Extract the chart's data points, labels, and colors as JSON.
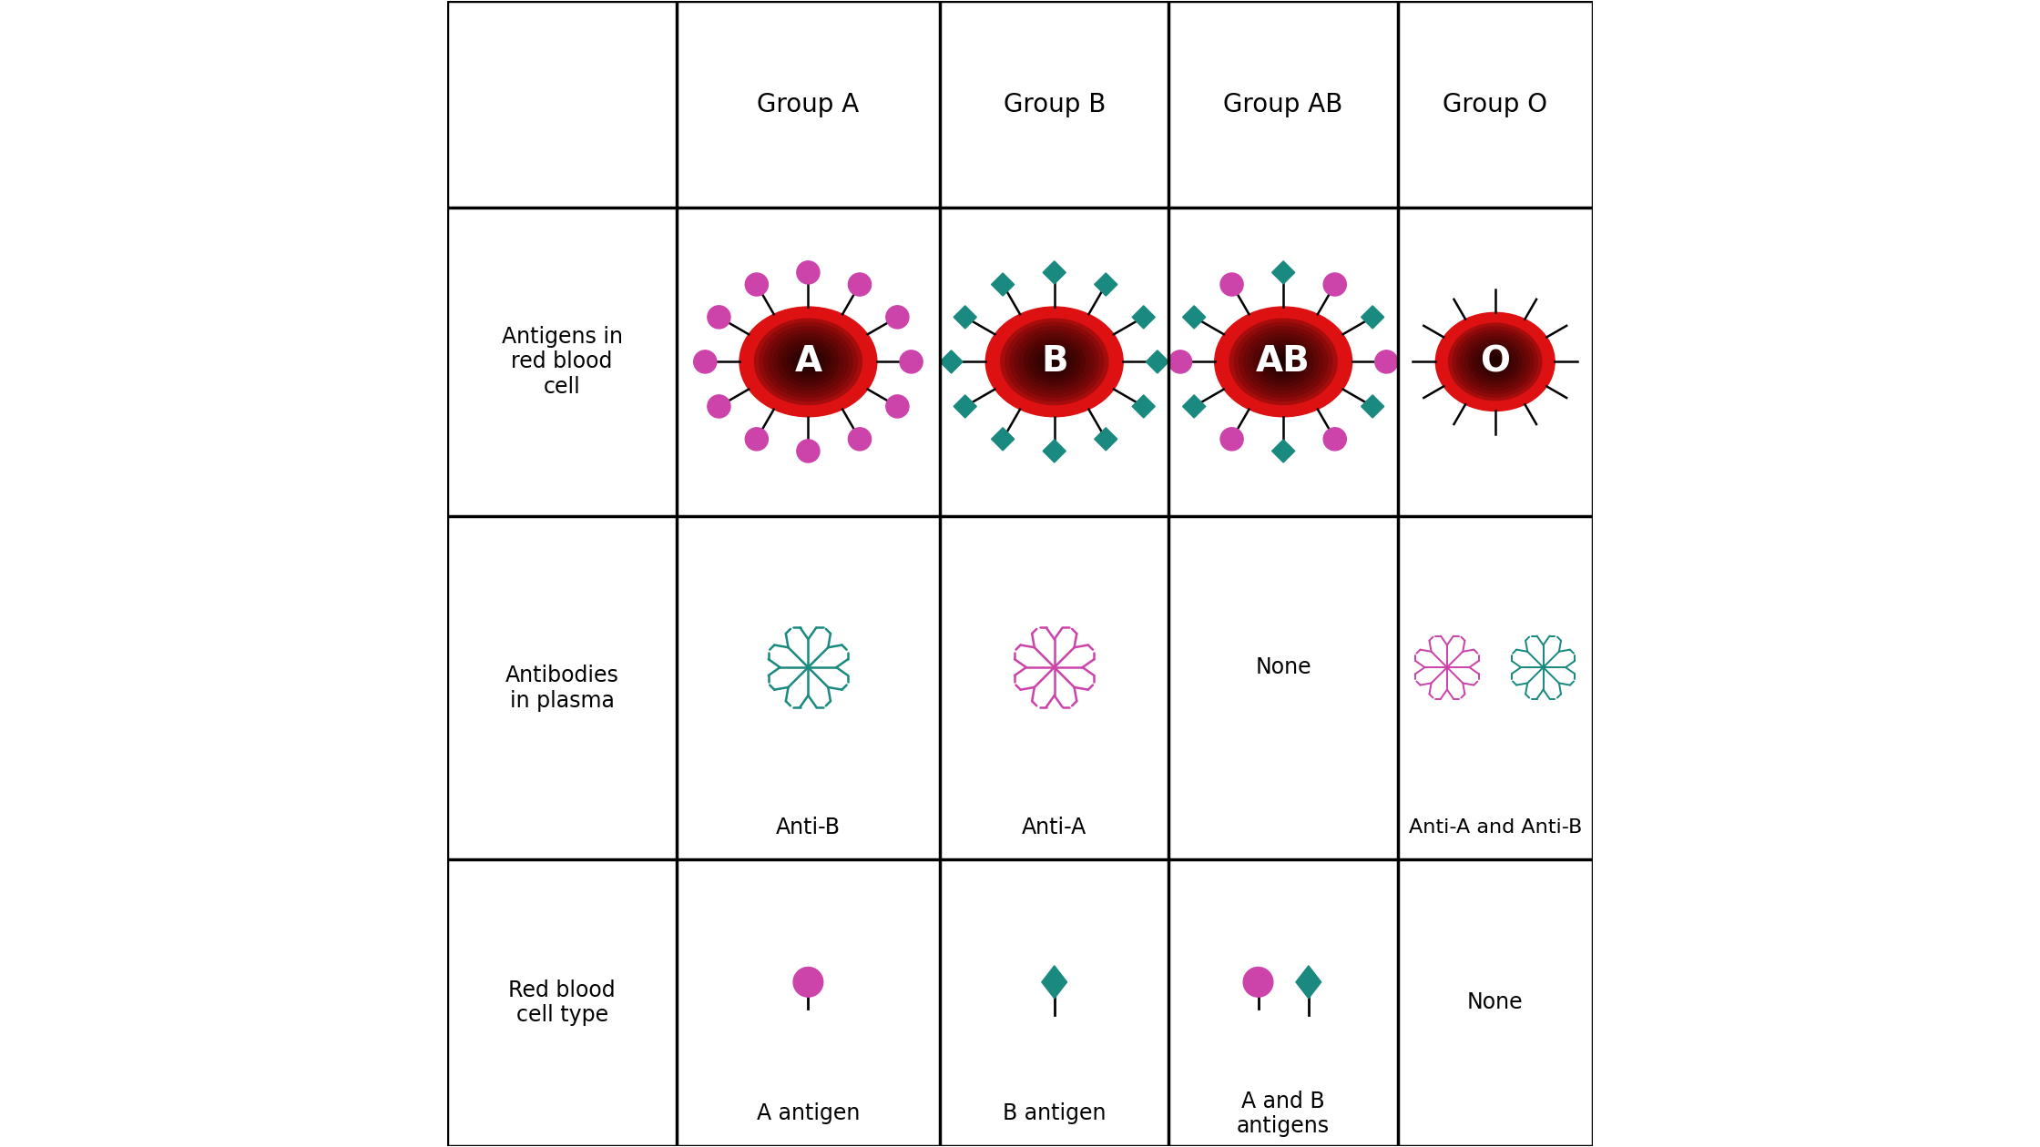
{
  "col_headers": [
    "Group A",
    "Group B",
    "Group AB",
    "Group O"
  ],
  "row_headers": [
    "Red blood\ncell type",
    "Antibodies\nin plasma",
    "Antigens in\nred blood\ncell"
  ],
  "antibody_labels": [
    "Anti-B",
    "Anti-A",
    "None",
    "Anti-A and Anti-B"
  ],
  "antigen_labels": [
    "A antigen",
    "B antigen",
    "A and B\nantigens",
    "None"
  ],
  "cell_labels": [
    "A",
    "B",
    "AB",
    "O"
  ],
  "magenta": "#CC44AA",
  "teal": "#1A8A80",
  "red_outer": "#DD1111",
  "red_inner": "#880000",
  "red_dark": "#220000",
  "black": "#000000",
  "white": "#FFFFFF",
  "bg": "#FFFFFF",
  "line_color": "#000000",
  "grid_lw": 2.5,
  "font_size_header": 20,
  "font_size_label": 17,
  "font_size_cell": 28
}
